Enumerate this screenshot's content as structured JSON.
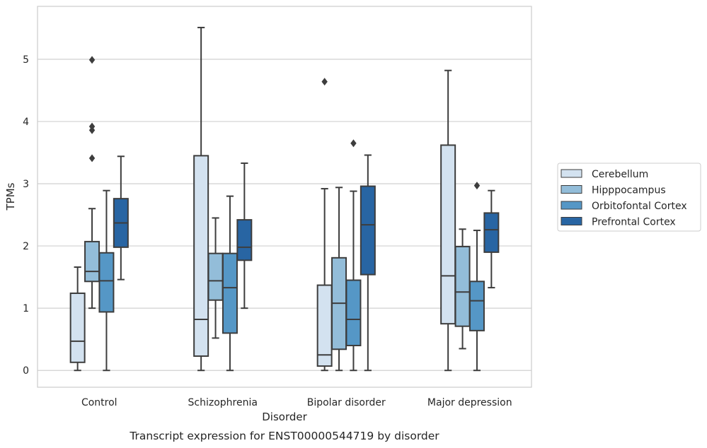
{
  "caption": "Transcript expression for ENST00000544719 by disorder",
  "chart_data": {
    "type": "box",
    "xlabel": "Disorder",
    "ylabel": "TPMs",
    "ylim": [
      -0.27,
      5.85
    ],
    "yticks": [
      0,
      1,
      2,
      3,
      4,
      5
    ],
    "grid": "horizontal",
    "legend_position": "right",
    "categories": [
      "Control",
      "Schizophrenia",
      "Bipolar disorder",
      "Major depression"
    ],
    "series": [
      {
        "name": "Cerebellum",
        "color": "#d3e2f0",
        "boxes": [
          {
            "whisker_low": 0.0,
            "q1": 0.13,
            "median": 0.47,
            "q3": 1.24,
            "whisker_high": 1.66,
            "outliers": []
          },
          {
            "whisker_low": 0.0,
            "q1": 0.23,
            "median": 0.82,
            "q3": 3.45,
            "whisker_high": 5.51,
            "outliers": []
          },
          {
            "whisker_low": 0.0,
            "q1": 0.07,
            "median": 0.25,
            "q3": 1.37,
            "whisker_high": 2.92,
            "outliers": [
              4.64
            ]
          },
          {
            "whisker_low": 0.0,
            "q1": 0.75,
            "median": 1.52,
            "q3": 3.62,
            "whisker_high": 4.82,
            "outliers": []
          }
        ]
      },
      {
        "name": "Hipppocampus",
        "color": "#93bdd9",
        "boxes": [
          {
            "whisker_low": 1.0,
            "q1": 1.43,
            "median": 1.59,
            "q3": 2.07,
            "whisker_high": 2.6,
            "outliers": [
              3.41,
              3.86,
              3.92,
              4.99
            ]
          },
          {
            "whisker_low": 0.52,
            "q1": 1.13,
            "median": 1.44,
            "q3": 1.88,
            "whisker_high": 2.45,
            "outliers": []
          },
          {
            "whisker_low": 0.0,
            "q1": 0.34,
            "median": 1.08,
            "q3": 1.81,
            "whisker_high": 2.94,
            "outliers": []
          },
          {
            "whisker_low": 0.35,
            "q1": 0.71,
            "median": 1.26,
            "q3": 1.99,
            "whisker_high": 2.27,
            "outliers": []
          }
        ]
      },
      {
        "name": "Orbitofontal Cortex",
        "color": "#5597c6",
        "boxes": [
          {
            "whisker_low": 0.0,
            "q1": 0.94,
            "median": 1.44,
            "q3": 1.89,
            "whisker_high": 2.89,
            "outliers": []
          },
          {
            "whisker_low": 0.0,
            "q1": 0.6,
            "median": 1.33,
            "q3": 1.88,
            "whisker_high": 2.8,
            "outliers": []
          },
          {
            "whisker_low": 0.0,
            "q1": 0.4,
            "median": 0.82,
            "q3": 1.45,
            "whisker_high": 2.88,
            "outliers": [
              3.65
            ]
          },
          {
            "whisker_low": 0.0,
            "q1": 0.64,
            "median": 1.12,
            "q3": 1.43,
            "whisker_high": 2.25,
            "outliers": [
              2.97
            ]
          }
        ]
      },
      {
        "name": "Prefrontal Cortex",
        "color": "#2865a3",
        "boxes": [
          {
            "whisker_low": 1.46,
            "q1": 1.98,
            "median": 2.37,
            "q3": 2.76,
            "whisker_high": 3.44,
            "outliers": []
          },
          {
            "whisker_low": 1.0,
            "q1": 1.77,
            "median": 1.98,
            "q3": 2.42,
            "whisker_high": 3.33,
            "outliers": []
          },
          {
            "whisker_low": 0.0,
            "q1": 1.54,
            "median": 2.34,
            "q3": 2.96,
            "whisker_high": 3.46,
            "outliers": []
          },
          {
            "whisker_low": 1.33,
            "q1": 1.9,
            "median": 2.26,
            "q3": 2.53,
            "whisker_high": 2.89,
            "outliers": []
          }
        ]
      }
    ]
  }
}
